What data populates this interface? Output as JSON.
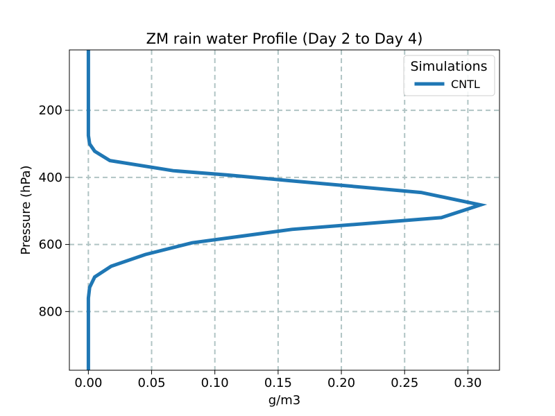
{
  "chart_data": {
    "type": "line",
    "title": "ZM rain water Profile (Day 2 to Day 4)",
    "xlabel": "g/m3",
    "ylabel": "Pressure (hPa)",
    "xlim": [
      -0.015,
      0.325
    ],
    "ylim": [
      975,
      20
    ],
    "y_inverted": true,
    "x_ticks": [
      0.0,
      0.05,
      0.1,
      0.15,
      0.2,
      0.25,
      0.3
    ],
    "x_tick_labels": [
      "0.00",
      "0.05",
      "0.10",
      "0.15",
      "0.20",
      "0.25",
      "0.30"
    ],
    "y_ticks": [
      200,
      400,
      600,
      800
    ],
    "y_tick_labels": [
      "200",
      "400",
      "600",
      "800"
    ],
    "grid": true,
    "legend": {
      "title": "Simulations",
      "placement": "top-right"
    },
    "series": [
      {
        "name": "CNTL",
        "color": "#1f77b4",
        "x": [
          0.0,
          0.0,
          0.0,
          0.0,
          0.001,
          0.005,
          0.017,
          0.067,
          0.11,
          0.16,
          0.263,
          0.31,
          0.279,
          0.161,
          0.082,
          0.045,
          0.018,
          0.005,
          0.001,
          0.0,
          0.0,
          0.0
        ],
        "y": [
          20,
          100,
          200,
          275,
          300,
          322,
          350,
          380,
          393,
          410,
          445,
          482,
          520,
          555,
          595,
          630,
          665,
          697,
          728,
          760,
          850,
          975
        ]
      }
    ]
  }
}
